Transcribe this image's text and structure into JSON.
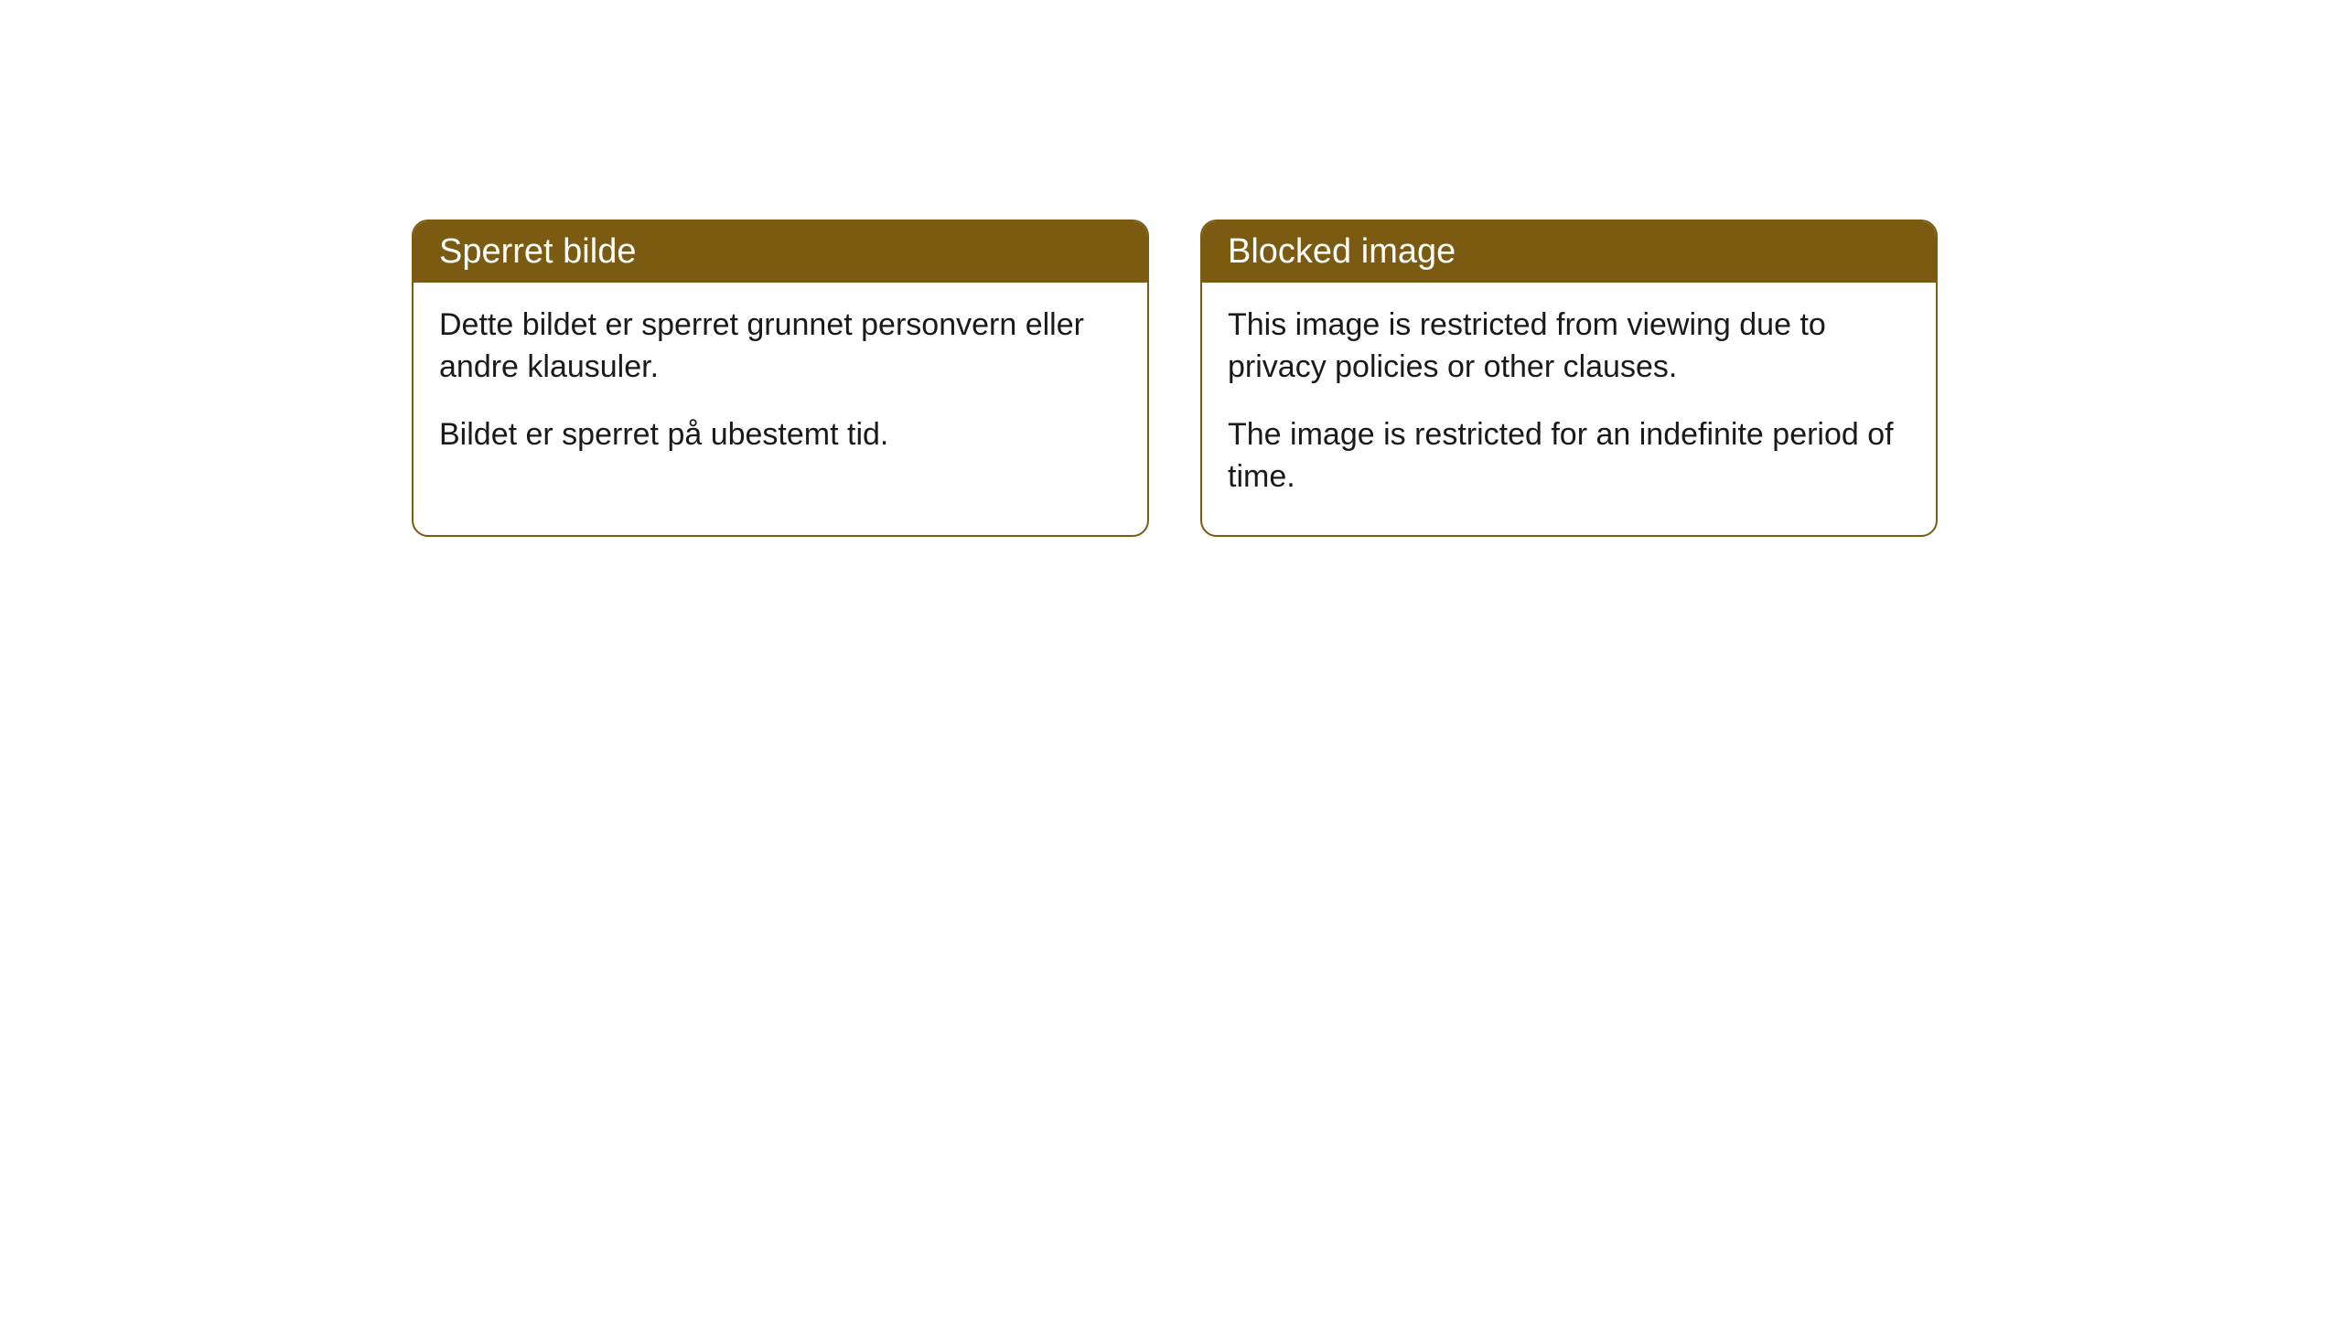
{
  "cards": [
    {
      "title": "Sperret bilde",
      "paragraph1": "Dette bildet er sperret grunnet personvern eller andre klausuler.",
      "paragraph2": "Bildet er sperret på ubestemt tid."
    },
    {
      "title": "Blocked image",
      "paragraph1": "This image is restricted from viewing due to privacy policies or other clauses.",
      "paragraph2": "The image is restricted for an indefinite period of time."
    }
  ],
  "style": {
    "header_bg": "#7a5b11",
    "header_text": "#ffffff",
    "border_color": "#7a5b11",
    "body_text": "#1a1a1a",
    "background": "#ffffff",
    "border_radius": 18,
    "title_fontsize": 38,
    "body_fontsize": 34
  }
}
